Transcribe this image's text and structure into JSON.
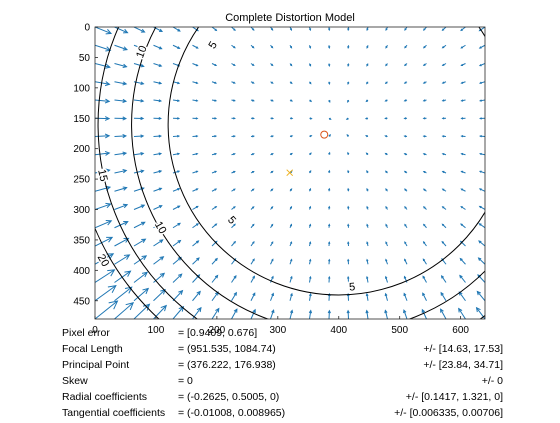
{
  "chart_data": {
    "type": "vector-contour",
    "title": "Complete Distortion Model",
    "xlim": [
      0,
      640
    ],
    "ylim": [
      0,
      480
    ],
    "y_reversed": true,
    "x_ticks": [
      0,
      100,
      200,
      300,
      400,
      500,
      600
    ],
    "y_ticks": [
      0,
      50,
      100,
      150,
      200,
      250,
      300,
      350,
      400,
      450
    ],
    "contours": [
      {
        "level": "5",
        "label_positions": [
          [
            194,
            30
          ],
          [
            224,
            318
          ],
          [
            422,
            428
          ]
        ]
      },
      {
        "level": "10",
        "label_positions": [
          [
            77,
            41
          ],
          [
            107,
            330
          ]
        ]
      },
      {
        "level": "15",
        "label_positions": [
          [
            12,
            244
          ]
        ]
      },
      {
        "level": "20",
        "label_positions": [
          [
            13,
            384
          ]
        ]
      }
    ],
    "principal_point": [
      376.222,
      176.938
    ],
    "image_center": [
      319.5,
      239.5
    ],
    "vector_grid": {
      "x_step": 32,
      "y_step": 30
    },
    "colors": {
      "arrows": "#1f77b4",
      "principal_point": "#d95319",
      "image_center": "#edb120",
      "contours": "#000000"
    }
  },
  "info": [
    {
      "label": "Pixel error",
      "value": "= [0.9409, 0.676]",
      "uncertainty": ""
    },
    {
      "label": "Focal Length",
      "value": "= (951.535, 1084.74)",
      "uncertainty": "+/- [14.63, 17.53]"
    },
    {
      "label": "Principal Point",
      "value": "= (376.222, 176.938)",
      "uncertainty": "+/- [23.84, 34.71]"
    },
    {
      "label": "Skew",
      "value": "= 0",
      "uncertainty": "+/- 0"
    },
    {
      "label": "Radial coefficients",
      "value": "= (-0.2625, 0.5005, 0)",
      "uncertainty": "+/- [0.1417, 1.321, 0]"
    },
    {
      "label": "Tangential coefficients",
      "value": "= (-0.01008, 0.008965)",
      "uncertainty": "+/- [0.006335, 0.00706]"
    }
  ]
}
